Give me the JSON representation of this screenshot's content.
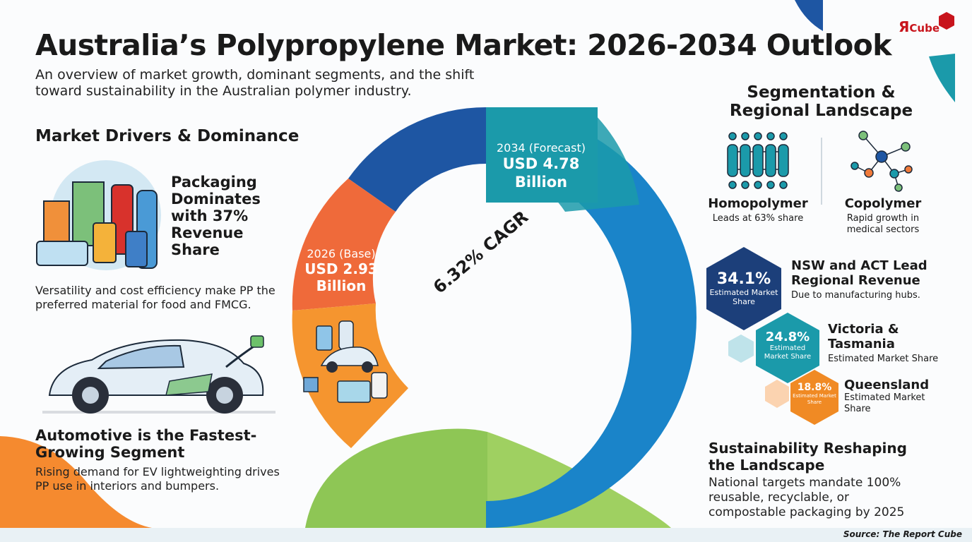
{
  "header": {
    "title": "Australia’s Polypropylene Market: 2026-2034 Outlook",
    "subtitle": "An overview of market growth, dominant segments, and the shift toward sustainability in the Australian polymer industry."
  },
  "logo": {
    "mark": "Я",
    "text": "Cube",
    "icon": "red-cube-icon"
  },
  "drivers": {
    "heading": "Market Drivers & Dominance",
    "packaging": {
      "icon": "packaging-products-icon",
      "title": "Packaging Dominates with 37% Revenue Share",
      "body": "Versatility and cost efficiency make PP the preferred material for food and FMCG."
    },
    "automotive": {
      "icon": "electric-car-icon",
      "title": "Automotive is the Fastest-Growing Segment",
      "body": "Rising demand for EV lightweighting drives PP use in interiors and bumpers."
    }
  },
  "growth": {
    "base_label": "2026 (Base)",
    "base_value": "USD 2.93 Billion",
    "forecast_label": "2034 (Forecast)",
    "forecast_value": "USD 4.78 Billion",
    "cagr": "6.32% CAGR",
    "colors": {
      "base": "#f47a35",
      "forecast": "#1a84c9",
      "navy": "#1e56a3",
      "green": "#8ec655"
    }
  },
  "segmentation": {
    "heading": "Segmentation & Regional Landscape",
    "homopolymer": {
      "icon": "homopolymer-chain-icon",
      "name": "Homopolymer",
      "desc": "Leads at 63% share"
    },
    "copolymer": {
      "icon": "copolymer-molecule-icon",
      "name": "Copolymer",
      "desc": "Rapid growth in medical sectors"
    },
    "regions": [
      {
        "share": "34.1%",
        "share_label": "Estimated Market Share",
        "name": "NSW and ACT Lead Regional Revenue",
        "desc": "Due to manufacturing hubs.",
        "color": "#1c3f7a"
      },
      {
        "share": "24.8%",
        "share_label": "Estimated Market Share",
        "name": "Victoria & Tasmania",
        "desc": "Estimated Market Share",
        "color": "#1b9aaa"
      },
      {
        "share": "18.8%",
        "share_label": "Estimated Market Share",
        "name": "Queensland",
        "desc": "Estimated Market Share",
        "color": "#f08a24"
      }
    ]
  },
  "sustainability": {
    "title": "Sustainability Reshaping the Landscape",
    "body": "National targets mandate 100% reusable, recyclable, or compostable packaging by 2025"
  },
  "footer": {
    "source": "Source: The Report Cube"
  }
}
